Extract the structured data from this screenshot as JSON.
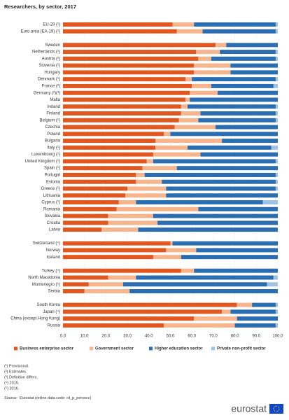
{
  "chart_data": {
    "type": "bar",
    "orientation": "horizontal",
    "stacked": true,
    "title": "Researchers, by sector, 2017",
    "categories": [
      "EU-28 (¹)",
      "Euro area (EA-19) (¹)",
      null,
      "Sweden",
      "Netherlands (¹)",
      "Austria (²)",
      "Slovenia (¹)",
      "Hungary",
      "Denmark (¹)",
      "France (²)",
      "Germany (²)(³)",
      "Malta",
      "Ireland",
      "Finland",
      "Belgium (¹)",
      "Czechia",
      "Poland",
      "Bulgaria",
      "Italy (¹)",
      "Luxembourg (¹)",
      "United Kingdom (¹)",
      "Spain (¹)",
      "Portugal",
      "Estonia",
      "Greece (¹)",
      "Lithuania",
      "Cyprus (¹)",
      "Romania",
      "Slovakia",
      "Croatia",
      "Latvia",
      null,
      "Switzerland (⁴)",
      "Norway",
      "Iceland",
      null,
      "Turkey (⁴)",
      "North Macedonia",
      "Montenegro (⁵)",
      "Serbia",
      null,
      "South Korea",
      "Japan (⁴)",
      "China (except Hong Kong)",
      "Russia"
    ],
    "series": [
      {
        "name": "Business enterprise sector",
        "color": "#e0581f",
        "values": [
          51,
          53,
          null,
          71,
          62,
          63,
          61,
          61,
          57,
          60,
          59,
          57,
          55,
          55,
          54,
          52,
          47,
          43,
          43,
          42,
          39,
          37,
          34,
          34,
          30,
          29,
          26,
          25,
          21,
          21,
          18,
          null,
          50,
          48,
          42,
          null,
          55,
          21,
          12,
          10,
          null,
          81,
          74,
          61,
          47
        ]
      },
      {
        "name": "Government sector",
        "color": "#f7b58d",
        "values": [
          10,
          12,
          null,
          5,
          11,
          6,
          17,
          17,
          3,
          9,
          13,
          2,
          3,
          9,
          9,
          19,
          3,
          31,
          15,
          22,
          3,
          16,
          4,
          12,
          18,
          19,
          8,
          38,
          21,
          23,
          17,
          null,
          1,
          14,
          13,
          null,
          6,
          13,
          16,
          21,
          null,
          7,
          4,
          20,
          33
        ]
      },
      {
        "name": "Higher education sector",
        "color": "#2a6db0",
        "values": [
          38,
          34,
          null,
          24,
          26,
          30,
          22,
          22,
          39,
          29,
          28,
          41,
          41,
          35,
          36,
          29,
          50,
          26,
          39,
          36,
          57,
          47,
          61,
          53,
          51,
          52,
          59,
          37,
          58,
          56,
          65,
          null,
          49,
          38,
          45,
          null,
          39,
          64,
          67,
          69,
          null,
          11,
          21,
          19,
          19
        ]
      },
      {
        "name": "Private non-profit sector",
        "color": "#9cc3e6",
        "values": [
          1,
          1,
          null,
          0,
          1,
          1,
          0,
          0,
          1,
          2,
          0,
          0,
          1,
          1,
          1,
          0,
          0,
          0,
          3,
          0,
          1,
          0,
          1,
          1,
          1,
          0,
          7,
          0,
          0,
          0,
          0,
          null,
          0,
          0,
          0,
          null,
          0,
          2,
          5,
          0,
          null,
          1,
          1,
          0,
          1
        ]
      }
    ],
    "xlim": [
      0,
      100
    ],
    "xticks": [
      {
        "value": 0,
        "label": "0.0"
      },
      {
        "value": 10,
        "label": "10.0"
      },
      {
        "value": 20,
        "label": "20.0"
      },
      {
        "value": 30,
        "label": "30.0"
      },
      {
        "value": 40,
        "label": "40.0"
      },
      {
        "value": 50,
        "label": "50.0"
      },
      {
        "value": 60,
        "label": "60.0"
      },
      {
        "value": 70,
        "label": "70.0"
      },
      {
        "value": 80,
        "label": "80.0"
      },
      {
        "value": 90,
        "label": "90.0"
      },
      {
        "value": 100,
        "label": "100.0"
      }
    ],
    "grid": true,
    "legend": "bottom",
    "notes": [
      "(¹) Provisional.",
      "(²) Estimates.",
      "(³) Definition differs.",
      "(⁴) 2015.",
      "(⁵) 2016."
    ],
    "source_label": "Source:",
    "source": "Eurostat (online data code: rd_p_persocc)",
    "logo": "eurostat"
  }
}
